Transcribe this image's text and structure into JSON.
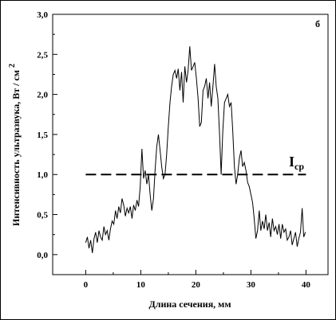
{
  "chart_data": {
    "type": "line",
    "panel_label": "б",
    "xlabel": "Длина сечения, мм",
    "ylabel_main": "Интенсивность ультразвука, Вт / см",
    "ylabel_sup": "2",
    "xlim": [
      -6,
      44
    ],
    "ylim": [
      -0.25,
      3.0
    ],
    "xticks": [
      0,
      10,
      20,
      30,
      40
    ],
    "xtick_labels": [
      "0",
      "10",
      "20",
      "30",
      "40"
    ],
    "yticks": [
      0.0,
      0.5,
      1.0,
      1.5,
      2.0,
      2.5,
      3.0
    ],
    "ytick_labels": [
      "0,0",
      "0,5",
      "1,0",
      "1,5",
      "2,0",
      "2,5",
      "3,0"
    ],
    "grid": false,
    "reference_line": {
      "label_main": "I",
      "label_sub": "ср",
      "y": 1.0,
      "x_range": [
        0,
        40
      ],
      "style": "dashed"
    },
    "series": [
      {
        "x": [
          0.0,
          0.3,
          0.6,
          0.9,
          1.2,
          1.5,
          1.8,
          2.1,
          2.4,
          2.7,
          3.0,
          3.3,
          3.6,
          3.9,
          4.2,
          4.5,
          4.8,
          5.1,
          5.4,
          5.7,
          6.0,
          6.3,
          6.6,
          6.9,
          7.2,
          7.5,
          7.8,
          8.1,
          8.4,
          8.7,
          9.0,
          9.3,
          9.6,
          9.9,
          10.2,
          10.5,
          10.8,
          11.1,
          11.4,
          11.7,
          12.0,
          12.3,
          12.6,
          12.9,
          13.2,
          13.5,
          13.8,
          14.1,
          14.4,
          14.7,
          15.0,
          15.3,
          15.6,
          15.9,
          16.2,
          16.5,
          16.8,
          17.1,
          17.4,
          17.7,
          18.0,
          18.3,
          18.6,
          18.9,
          19.2,
          19.5,
          19.8,
          20.1,
          20.4,
          20.7,
          21.0,
          21.3,
          21.6,
          21.9,
          22.2,
          22.5,
          22.8,
          23.1,
          23.4,
          23.7,
          24.0,
          24.3,
          24.6,
          24.9,
          25.2,
          25.5,
          25.8,
          26.1,
          26.4,
          26.7,
          27.0,
          27.3,
          27.6,
          27.9,
          28.2,
          28.5,
          28.8,
          29.1,
          29.4,
          29.7,
          30.0,
          30.3,
          30.6,
          30.9,
          31.2,
          31.5,
          31.8,
          32.1,
          32.4,
          32.7,
          33.0,
          33.3,
          33.6,
          33.9,
          34.2,
          34.5,
          34.8,
          35.1,
          35.4,
          35.7,
          36.0,
          36.3,
          36.6,
          36.9,
          37.2,
          37.5,
          37.8,
          38.1,
          38.4,
          38.7,
          39.0,
          39.3,
          39.6,
          39.9
        ],
        "y": [
          0.15,
          0.22,
          0.08,
          0.18,
          0.02,
          0.2,
          0.28,
          0.15,
          0.3,
          0.22,
          0.18,
          0.35,
          0.25,
          0.3,
          0.18,
          0.32,
          0.42,
          0.38,
          0.55,
          0.45,
          0.6,
          0.52,
          0.7,
          0.62,
          0.48,
          0.58,
          0.52,
          0.6,
          0.45,
          0.62,
          0.55,
          0.68,
          0.6,
          0.85,
          1.32,
          0.95,
          1.05,
          0.88,
          1.0,
          0.75,
          0.55,
          0.7,
          1.05,
          1.35,
          1.5,
          1.3,
          1.1,
          0.95,
          1.0,
          1.25,
          1.6,
          1.9,
          2.1,
          2.25,
          2.3,
          2.2,
          2.32,
          2.05,
          2.28,
          1.9,
          2.35,
          2.15,
          2.3,
          2.6,
          2.3,
          2.35,
          2.4,
          2.2,
          1.95,
          1.6,
          1.65,
          2.05,
          2.1,
          2.2,
          1.95,
          2.15,
          1.85,
          2.1,
          2.38,
          2.1,
          1.95,
          1.5,
          1.0,
          1.55,
          1.9,
          1.95,
          2.0,
          1.85,
          1.9,
          1.55,
          1.1,
          0.88,
          1.0,
          1.2,
          1.3,
          1.1,
          1.15,
          1.05,
          0.9,
          0.85,
          0.75,
          0.65,
          0.45,
          0.2,
          0.3,
          0.55,
          0.3,
          0.42,
          0.32,
          0.5,
          0.3,
          0.4,
          0.22,
          0.45,
          0.3,
          0.35,
          0.25,
          0.38,
          0.2,
          0.38,
          0.28,
          0.32,
          0.18,
          0.22,
          0.3,
          0.12,
          0.2,
          0.28,
          0.1,
          0.2,
          0.28,
          0.58,
          0.22,
          0.28
        ]
      }
    ]
  }
}
